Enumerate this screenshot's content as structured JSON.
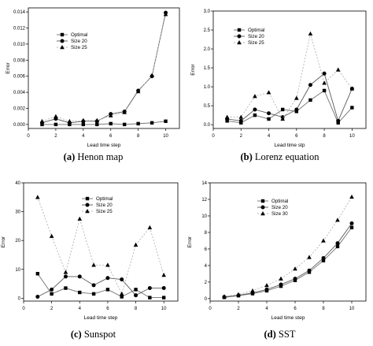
{
  "chart_data": [
    {
      "type": "line",
      "caption_label": "(a)",
      "caption_title": "Henon map",
      "xlabel": "Lead time step",
      "ylabel": "Error",
      "xlim": [
        0,
        11
      ],
      "ylim": [
        -0.0005,
        0.0145
      ],
      "xticks": [
        0,
        2,
        4,
        6,
        8,
        10
      ],
      "yticks": [
        0,
        0.002,
        0.004,
        0.006,
        0.008,
        0.01,
        0.012,
        0.014
      ],
      "ytick_labels": [
        "0.000",
        "0.002",
        "0.004",
        "0.006",
        "0.008",
        "0.010",
        "0.012",
        "0.014"
      ],
      "legend_position": "top-left",
      "x": [
        1,
        2,
        3,
        4,
        5,
        6,
        7,
        8,
        9,
        10
      ],
      "series": [
        {
          "name": "Optimal",
          "marker": "square",
          "values": [
            0.0,
            0.0,
            0.0,
            0.0,
            0.0,
            0.0001,
            0.0,
            0.0001,
            0.0002,
            0.0004
          ]
        },
        {
          "name": "Size 20",
          "marker": "circle",
          "values": [
            0.0002,
            0.0007,
            0.0002,
            0.0004,
            0.0004,
            0.0013,
            0.0016,
            0.0042,
            0.006,
            0.0139
          ]
        },
        {
          "name": "Size 25",
          "marker": "triangle",
          "values": [
            0.0004,
            0.001,
            0.0004,
            0.0005,
            0.0005,
            0.0011,
            0.0015,
            0.0041,
            0.0061,
            0.0137
          ]
        }
      ]
    },
    {
      "type": "line",
      "caption_label": "(b)",
      "caption_title": "Lorenz equation",
      "xlabel": "Lead time stp",
      "ylabel": "Error",
      "xlim": [
        0,
        11
      ],
      "ylim": [
        -0.1,
        3.0
      ],
      "xticks": [
        0,
        2,
        4,
        6,
        8,
        10
      ],
      "yticks": [
        0,
        0.5,
        1.0,
        1.5,
        2.0,
        2.5,
        3.0
      ],
      "ytick_labels": [
        "0.0",
        "0.5",
        "1.0",
        "1.5",
        "2.0",
        "2.5",
        "3.0"
      ],
      "legend_position": "top-left",
      "x": [
        1,
        2,
        3,
        4,
        5,
        6,
        7,
        8,
        9,
        10
      ],
      "series": [
        {
          "name": "Optimal",
          "marker": "square",
          "values": [
            0.1,
            0.05,
            0.25,
            0.15,
            0.4,
            0.35,
            0.65,
            0.9,
            0.05,
            0.45
          ]
        },
        {
          "name": "Size 20",
          "marker": "circle",
          "values": [
            0.15,
            0.1,
            0.4,
            0.3,
            0.2,
            0.4,
            1.05,
            1.35,
            0.1,
            0.95
          ]
        },
        {
          "name": "Size 25",
          "marker": "triangle",
          "values": [
            0.2,
            0.2,
            0.75,
            0.85,
            0.15,
            0.7,
            2.4,
            1.1,
            1.45,
            0.95
          ]
        }
      ]
    },
    {
      "type": "line",
      "caption_label": "(c)",
      "caption_title": "Sunspot",
      "xlabel": "Lead time step",
      "ylabel": "Error",
      "xlim": [
        0,
        11
      ],
      "ylim": [
        -1,
        40
      ],
      "xticks": [
        0,
        2,
        4,
        6,
        8,
        10
      ],
      "yticks": [
        0,
        10,
        20,
        30,
        40
      ],
      "ytick_labels": [
        "0",
        "10",
        "20",
        "30",
        "40"
      ],
      "legend_position": "top-right",
      "x": [
        1,
        2,
        3,
        4,
        5,
        6,
        7,
        8,
        9,
        10
      ],
      "series": [
        {
          "name": "Optimal",
          "marker": "square",
          "values": [
            8.5,
            1.5,
            3.5,
            2.0,
            1.5,
            3.0,
            0.5,
            3.0,
            0.2,
            0.2
          ]
        },
        {
          "name": "Size 20",
          "marker": "circle",
          "values": [
            0.5,
            3.0,
            7.5,
            7.5,
            4.5,
            7.0,
            6.5,
            1.0,
            3.5,
            3.5
          ]
        },
        {
          "name": "Size 25",
          "marker": "triangle",
          "values": [
            35.0,
            21.5,
            9.0,
            27.5,
            11.5,
            11.5,
            1.5,
            18.5,
            24.5,
            8.0
          ]
        }
      ]
    },
    {
      "type": "line",
      "caption_label": "(d)",
      "caption_title": "SST",
      "xlabel": "Lead time step",
      "ylabel": "Error",
      "xlim": [
        0,
        11
      ],
      "ylim": [
        -0.3,
        14
      ],
      "xticks": [
        0,
        2,
        4,
        6,
        8,
        10
      ],
      "yticks": [
        0,
        2,
        4,
        6,
        8,
        10,
        12,
        14
      ],
      "ytick_labels": [
        "0",
        "2",
        "4",
        "6",
        "8",
        "10",
        "12",
        "14"
      ],
      "legend_position": "top-left",
      "x": [
        1,
        2,
        3,
        4,
        5,
        6,
        7,
        8,
        9,
        10
      ],
      "series": [
        {
          "name": "Optimal",
          "marker": "square",
          "values": [
            0.15,
            0.35,
            0.6,
            0.95,
            1.5,
            2.2,
            3.2,
            4.6,
            6.3,
            8.6
          ]
        },
        {
          "name": "Size 20",
          "marker": "circle",
          "values": [
            0.2,
            0.4,
            0.7,
            1.1,
            1.7,
            2.4,
            3.4,
            4.9,
            6.7,
            9.1
          ]
        },
        {
          "name": "Size 30",
          "marker": "triangle",
          "values": [
            0.25,
            0.5,
            0.95,
            1.6,
            2.4,
            3.6,
            5.0,
            7.0,
            9.5,
            12.3
          ]
        }
      ]
    }
  ]
}
